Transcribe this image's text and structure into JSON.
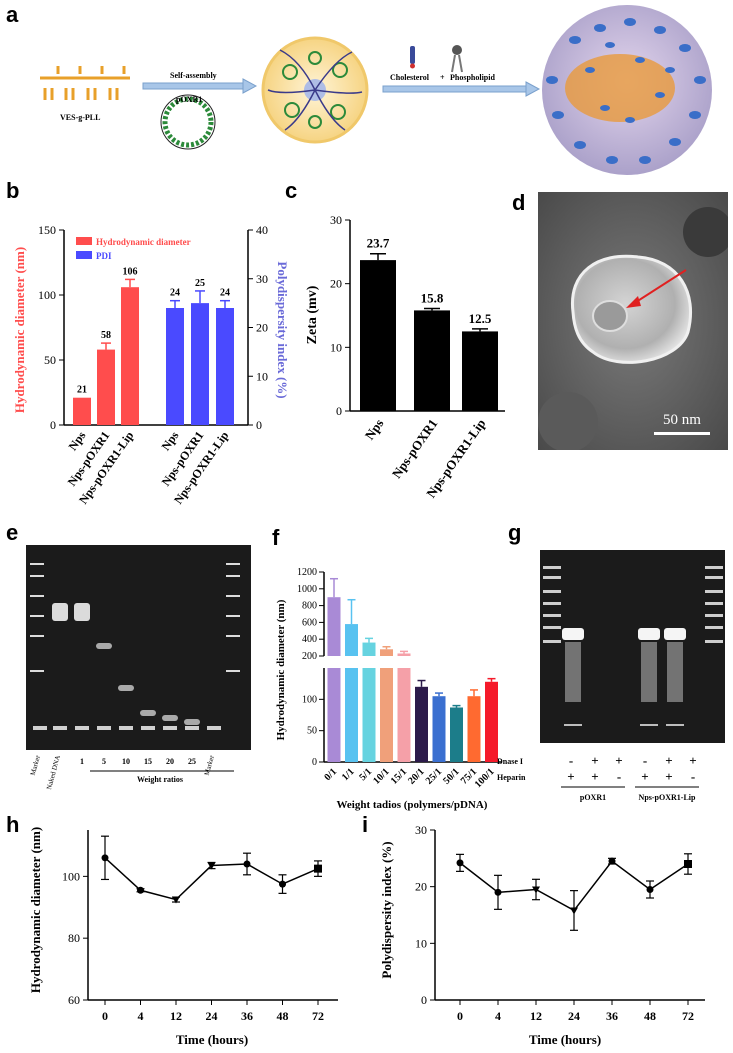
{
  "panels": {
    "a": {
      "letter": "a",
      "polymer_label": "VES-g-PLL",
      "arrow1_label": "Self-assembly",
      "plasmid_label": "pOXR1",
      "arrow2_label_a": "Cholesterol",
      "arrow2_plus": "+",
      "arrow2_label_b": "Phospholipid"
    },
    "b": {
      "letter": "b",
      "ylabel_left": "Hydrodynamic diameter (nm)",
      "ylabel_right": "Polydispersity index (%)",
      "legend": [
        {
          "name": "Hydrodynamic diameter",
          "color": "#ff4d4d"
        },
        {
          "name": "PDI",
          "color": "#4a4aff"
        }
      ]
    },
    "c": {
      "letter": "c",
      "ylabel": "Zeta (mv)"
    },
    "d": {
      "letter": "d",
      "scale_bar": "50 nm"
    },
    "e": {
      "letter": "e",
      "lane_labels": [
        "Marker",
        "Naked DNA",
        "1",
        "5",
        "10",
        "15",
        "20",
        "25",
        "Marker"
      ],
      "axis_label": "Weight ratios"
    },
    "f": {
      "letter": "f"
    },
    "g": {
      "letter": "g",
      "row1_label": "Dnase I",
      "row1_marks": [
        "-",
        "+",
        "+",
        "-",
        "+",
        "+"
      ],
      "row2_label": "Heparin",
      "row2_marks": [
        "+",
        "+",
        "-",
        "+",
        "+",
        "-"
      ],
      "group1": "pOXR1",
      "group2": "Nps-pOXR1-Lip"
    },
    "h": {
      "letter": "h"
    },
    "i": {
      "letter": "i"
    }
  },
  "chart_data": [
    {
      "id": "b",
      "type": "bar",
      "categories": [
        "Nps",
        "Nps-pOXR1",
        "Nps-pOXR1-Lip"
      ],
      "series": [
        {
          "name": "Hydrodynamic diameter",
          "values": [
            21,
            58,
            106
          ],
          "errors": [
            0,
            5,
            6
          ],
          "labels": [
            "21",
            "58",
            "106"
          ],
          "axis": "left",
          "color": "#ff4d4d"
        },
        {
          "name": "PDI",
          "values": [
            24,
            25,
            24
          ],
          "errors": [
            1.5,
            2.5,
            1.5
          ],
          "labels": [
            "24",
            "25",
            "24"
          ],
          "axis": "right",
          "color": "#4a4aff"
        }
      ],
      "ylabel": "Hydrodynamic diameter (nm)",
      "ylabel_right": "Polydispersity index (%)",
      "ylim": [
        0,
        150
      ],
      "ylim_right": [
        0,
        40
      ],
      "yticks": [
        0,
        50,
        100,
        150
      ],
      "yticks_right": [
        0,
        10,
        20,
        30,
        40
      ]
    },
    {
      "id": "c",
      "type": "bar",
      "categories": [
        "Nps",
        "Nps-pOXR1",
        "Nps-pOXR1-Lip"
      ],
      "values": [
        23.7,
        15.8,
        12.5
      ],
      "errors": [
        1.0,
        0.3,
        0.4
      ],
      "labels": [
        "23.7",
        "15.8",
        "12.5"
      ],
      "ylabel": "Zeta (mv)",
      "ylim": [
        0,
        30
      ],
      "yticks": [
        0,
        10,
        20,
        30
      ]
    },
    {
      "id": "f",
      "type": "bar",
      "categories": [
        "0/1",
        "1/1",
        "5/1",
        "10/1",
        "15/1",
        "20/1",
        "25/1",
        "50/1",
        "75/1",
        "100/1"
      ],
      "values": [
        900,
        580,
        360,
        280,
        230,
        120,
        105,
        87,
        105,
        128
      ],
      "errors": [
        220,
        290,
        50,
        30,
        25,
        10,
        5,
        3,
        10,
        5
      ],
      "colors": [
        "#a98ad6",
        "#58c2f0",
        "#66d3e0",
        "#f0a07a",
        "#f5a0a8",
        "#2c1a4a",
        "#3a6fd0",
        "#1c7d8a",
        "#ff6a30",
        "#f51a2a"
      ],
      "xlabel": "Weight tadios (polymers/pDNA)",
      "ylabel": "Hydrodynamic diameter (nm)",
      "yticks_upper": [
        200,
        400,
        600,
        800,
        1000,
        1200
      ],
      "yticks_lower": [
        0,
        50,
        100
      ],
      "ylim_upper": [
        200,
        1200
      ],
      "ylim_lower": [
        0,
        150
      ]
    },
    {
      "id": "h",
      "type": "line",
      "x": [
        "0",
        "4",
        "12",
        "24",
        "36",
        "48",
        "72"
      ],
      "y": [
        106,
        95.5,
        92.5,
        103.5,
        104,
        97.5,
        102.5
      ],
      "errors": [
        7,
        0.5,
        0.8,
        1,
        3.5,
        3,
        2.5
      ],
      "markers": [
        "circle",
        "circle",
        "triangle-down",
        "triangle-down",
        "circle",
        "circle",
        "square"
      ],
      "xlabel": "Time (hours)",
      "ylabel": "Hydrodynamic diameter (nm)",
      "ylim": [
        60,
        115
      ],
      "yticks": [
        60,
        80,
        100
      ]
    },
    {
      "id": "i",
      "type": "line",
      "x": [
        "0",
        "4",
        "12",
        "24",
        "36",
        "48",
        "72"
      ],
      "y": [
        24.2,
        19,
        19.5,
        15.8,
        24.5,
        19.5,
        24
      ],
      "errors": [
        1.5,
        3,
        1.8,
        3.5,
        0.5,
        1.5,
        1.8
      ],
      "markers": [
        "circle",
        "circle",
        "triangle-down",
        "triangle-down",
        "circle",
        "circle",
        "square"
      ],
      "xlabel": "Time (hours)",
      "ylabel": "Polydispersity index (%)",
      "ylim": [
        0,
        30
      ],
      "yticks": [
        0,
        10,
        20,
        30
      ]
    }
  ]
}
